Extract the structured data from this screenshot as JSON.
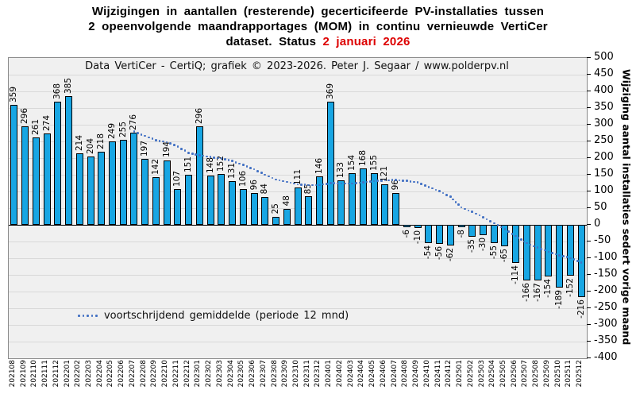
{
  "title": {
    "line1": "Wijzigingen in aantallen (resterende) gecerticifeerde PV-installaties tussen",
    "line2": "2 opeenvolgende maandrapportages (MOM) in continu vernieuwde VertiCer",
    "line3_prefix": "dataset. Status ",
    "line3_highlight": "2 januari 2026",
    "highlight_color": "#dd0000"
  },
  "subtitle": "Data VertiCer - CertiQ; grafiek © 2023-2026.  Peter J. Segaar / www.polderpv.nl",
  "legend": {
    "label": "voortschrijdend gemiddelde  (periode 12 mnd)"
  },
  "y_axis": {
    "title": "Wijziging aantal installaties sedert vorige maand",
    "min": -400,
    "max": 500,
    "step": 50,
    "ticks": [
      500,
      450,
      400,
      350,
      300,
      250,
      200,
      150,
      100,
      50,
      0,
      -50,
      -100,
      -150,
      -200,
      -250,
      -300,
      -350,
      -400
    ]
  },
  "chart_data": {
    "type": "bar",
    "title": "Wijzigingen in aantallen (resterende) gecerticifeerde PV-installaties tussen 2 opeenvolgende maandrapportages (MOM) in continu vernieuwde VertiCer dataset. Status 2 januari 2026",
    "xlabel": "",
    "ylabel": "Wijziging aantal installaties sedert vorige maand",
    "ylim": [
      -400,
      500
    ],
    "grid": "horizontal",
    "legend_position": "bottom-left",
    "categories": [
      "202108",
      "202109",
      "202110",
      "202111",
      "202112",
      "202201",
      "202202",
      "202203",
      "202204",
      "202205",
      "202206",
      "202207",
      "202208",
      "202209",
      "202210",
      "202211",
      "202212",
      "202301",
      "202302",
      "202303",
      "202304",
      "202305",
      "202306",
      "202307",
      "202308",
      "202309",
      "202310",
      "202311",
      "202312",
      "202401",
      "202402",
      "202403",
      "202404",
      "202405",
      "202406",
      "202407",
      "202408",
      "202409",
      "202410",
      "202411",
      "202412",
      "202501",
      "202502",
      "202503",
      "202504",
      "202505",
      "202506",
      "202507",
      "202508",
      "202509",
      "202510",
      "202511",
      "202512"
    ],
    "series": [
      {
        "name": "MOM wijziging aantal installaties",
        "type": "bar",
        "values": [
          359,
          296,
          261,
          274,
          368,
          385,
          214,
          204,
          218,
          249,
          255,
          276,
          197,
          142,
          194,
          107,
          151,
          296,
          148,
          152,
          131,
          106,
          96,
          84,
          25,
          48,
          111,
          85,
          146,
          369,
          133,
          154,
          168,
          155,
          121,
          96,
          -6,
          -10,
          -54,
          -56,
          -62,
          -8,
          -35,
          -30,
          -55,
          -65,
          -114,
          -166,
          -167,
          -154,
          -189,
          -152,
          -216
        ]
      },
      {
        "name": "voortschrijdend gemiddelde (periode 12 mnd)",
        "type": "dotted-line",
        "values": [
          null,
          null,
          null,
          null,
          null,
          null,
          null,
          null,
          null,
          null,
          null,
          279.9,
          266.4,
          253.6,
          248.0,
          234.1,
          216.0,
          208.6,
          203.1,
          198.8,
          191.5,
          179.6,
          166.3,
          150.3,
          136.0,
          128.2,
          121.3,
          119.4,
          119.0,
          125.1,
          123.8,
          124.0,
          127.1,
          131.2,
          133.3,
          134.3,
          131.7,
          126.8,
          113.1,
          101.3,
          84.0,
          52.6,
          38.6,
          23.3,
          4.7,
          -13.7,
          -33.3,
          -55.1,
          -68.5,
          -80.5,
          -91.8,
          -99.8,
          -112.6
        ]
      }
    ],
    "colors": {
      "bar_fill": "#18a6e3",
      "bar_border": "#000000",
      "avg_line": "#4472c4",
      "plot_background": "#f0f0f0",
      "gridline": "#d9d9d9",
      "title_highlight": "#dd0000"
    }
  }
}
